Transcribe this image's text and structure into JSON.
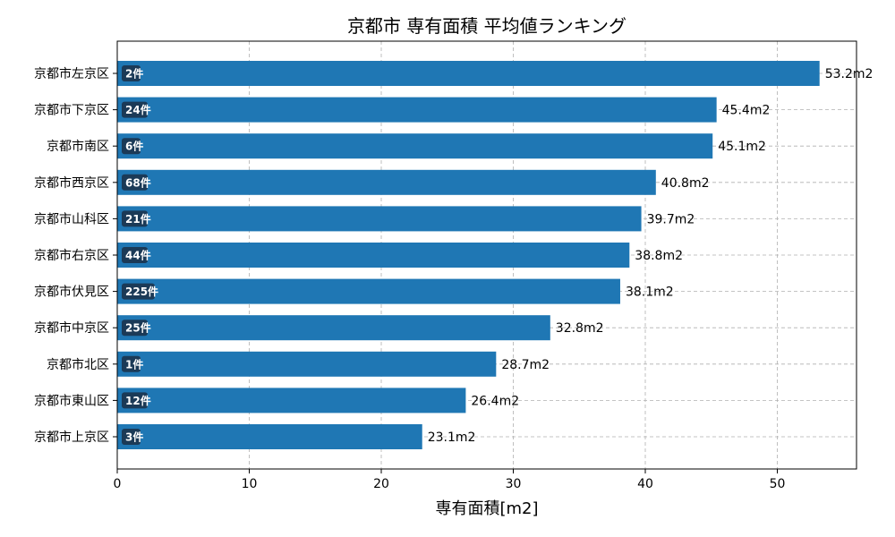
{
  "chart_data": {
    "type": "bar",
    "orientation": "horizontal",
    "title": "京都市 専有面積 平均値ランキング",
    "xlabel": "専有面積[m2]",
    "ylabel": "",
    "xlim": [
      0,
      56
    ],
    "xticks": [
      0,
      10,
      20,
      30,
      40,
      50
    ],
    "grid": true,
    "bar_color": "#1f77b4",
    "badge_color": "#1b3a57",
    "value_suffix": "m2",
    "categories": [
      "京都市左京区",
      "京都市下京区",
      "京都市南区",
      "京都市西京区",
      "京都市山科区",
      "京都市右京区",
      "京都市伏見区",
      "京都市中京区",
      "京都市北区",
      "京都市東山区",
      "京都市上京区"
    ],
    "values": [
      53.2,
      45.4,
      45.1,
      40.8,
      39.7,
      38.8,
      38.1,
      32.8,
      28.7,
      26.4,
      23.1
    ],
    "value_labels": [
      "53.2m2",
      "45.4m2",
      "45.1m2",
      "40.8m2",
      "39.7m2",
      "38.8m2",
      "38.1m2",
      "32.8m2",
      "28.7m2",
      "26.4m2",
      "23.1m2"
    ],
    "counts": [
      "2件",
      "24件",
      "6件",
      "68件",
      "21件",
      "44件",
      "225件",
      "25件",
      "1件",
      "12件",
      "3件"
    ]
  }
}
